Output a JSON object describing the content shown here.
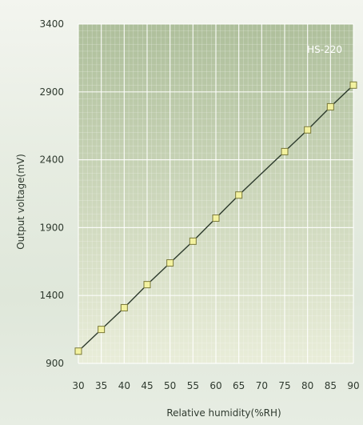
{
  "chart_data": {
    "type": "line",
    "title": "",
    "xlabel": "Relative humidity(%RH)",
    "ylabel": "Output voltage(mV)",
    "annotation": "HS-220",
    "x": [
      30,
      35,
      40,
      45,
      50,
      55,
      60,
      65,
      75,
      80,
      85,
      90
    ],
    "xticks": [
      "30",
      "35",
      "40",
      "45",
      "50",
      "55",
      "60",
      "65",
      "70",
      "75",
      "80",
      "85",
      "90"
    ],
    "yticks": [
      "900",
      "1400",
      "1900",
      "2400",
      "2900",
      "3400"
    ],
    "xlim": [
      30,
      90
    ],
    "ylim": [
      900,
      3400
    ],
    "grid": true,
    "series": [
      {
        "values": [
          990,
          1150,
          1310,
          1480,
          1640,
          1800,
          1970,
          2140,
          2460,
          2620,
          2790,
          2950
        ]
      }
    ],
    "colors": {
      "plot_bg_top": "#aebf9b",
      "plot_bg_bottom": "#e9edd9",
      "line": "#2c3a2c",
      "marker_fill": "#f3f2a0",
      "marker_stroke": "#7b7a3a"
    }
  }
}
